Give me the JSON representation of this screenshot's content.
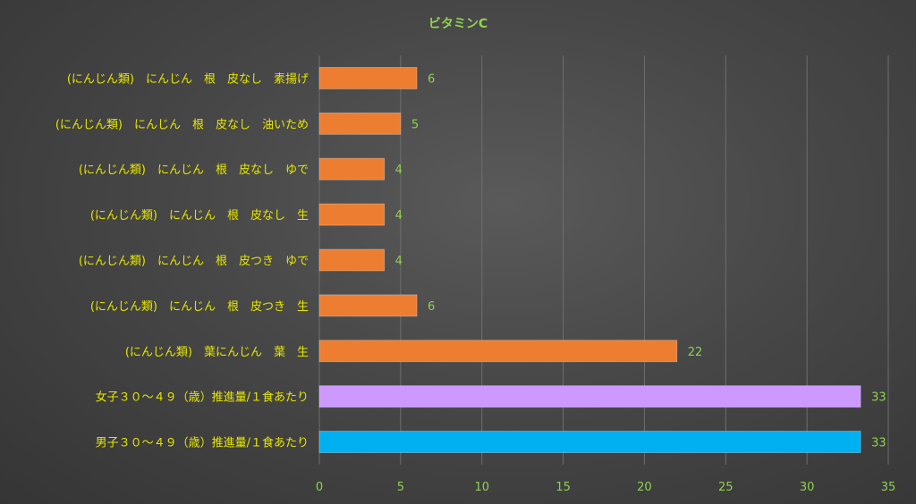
{
  "chart_data": {
    "type": "bar",
    "orientation": "horizontal",
    "title": "ビタミンC",
    "categories": [
      "(にんじん類)　にんじん　根　皮なし　素揚げ",
      "(にんじん類)　にんじん　根　皮なし　油いため",
      "(にんじん類)　にんじん　根　皮なし　ゆで",
      "(にんじん類)　にんじん　根　皮なし　生",
      "(にんじん類)　にんじん　根　皮つき　ゆで",
      "(にんじん類)　にんじん　根　皮つき　生",
      "(にんじん類)　葉にんじん　葉　生",
      "女子３０～４９（歳）推進量/１食あたり",
      "男子３０～４９（歳）推進量/１食あたり"
    ],
    "values": [
      6,
      5,
      4,
      4,
      4,
      6,
      22,
      33.3,
      33.3
    ],
    "value_labels": [
      "6",
      "5",
      "4",
      "4",
      "4",
      "6",
      "22",
      "33",
      "33"
    ],
    "colors": [
      "#ed7d31",
      "#ed7d31",
      "#ed7d31",
      "#ed7d31",
      "#ed7d31",
      "#ed7d31",
      "#ed7d31",
      "#cc99ff",
      "#00b0f0"
    ],
    "xlim": [
      0,
      35
    ],
    "xticks": [
      0,
      5,
      10,
      15,
      20,
      25,
      30,
      35
    ],
    "grid": true,
    "xlabel": "",
    "ylabel": ""
  }
}
